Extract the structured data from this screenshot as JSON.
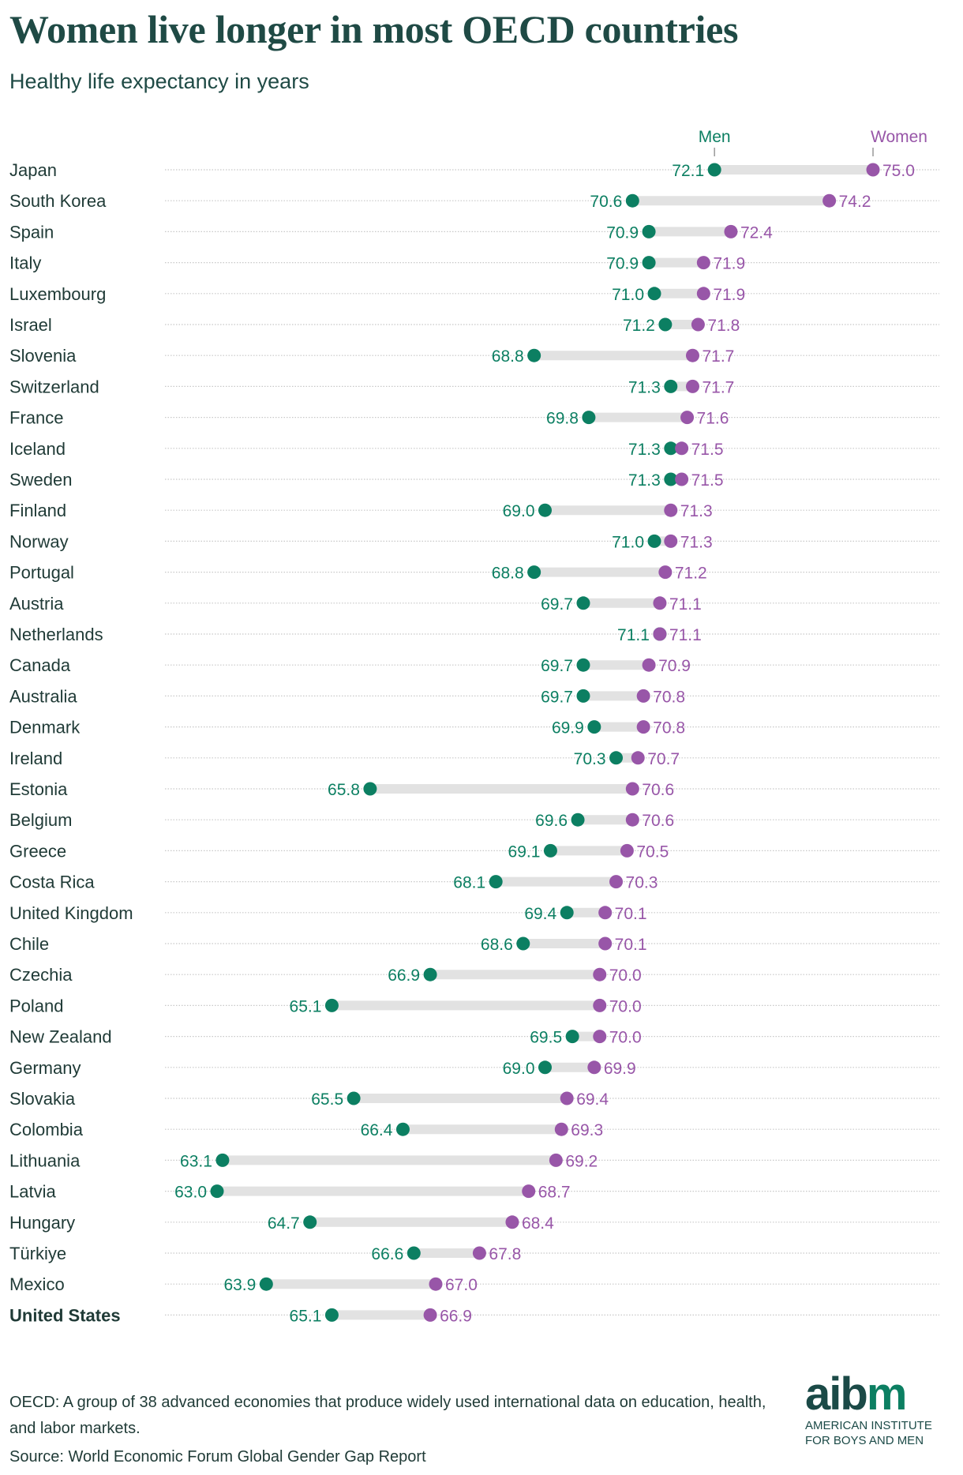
{
  "chart_data": {
    "type": "dumbbell",
    "title": "Women live longer in most OECD countries",
    "subtitle": "Healthy life expectancy in years",
    "series": [
      {
        "name": "Men",
        "color": "#0c7f62"
      },
      {
        "name": "Women",
        "color": "#9856a8"
      }
    ],
    "legend_placement": "top-right",
    "xlim": [
      63.0,
      75.0
    ],
    "rows": [
      {
        "country": "Japan",
        "men": 72.1,
        "women": 75.0
      },
      {
        "country": "South Korea",
        "men": 70.6,
        "women": 74.2
      },
      {
        "country": "Spain",
        "men": 70.9,
        "women": 72.4
      },
      {
        "country": "Italy",
        "men": 70.9,
        "women": 71.9
      },
      {
        "country": "Luxembourg",
        "men": 71.0,
        "women": 71.9
      },
      {
        "country": "Israel",
        "men": 71.2,
        "women": 71.8
      },
      {
        "country": "Slovenia",
        "men": 68.8,
        "women": 71.7
      },
      {
        "country": "Switzerland",
        "men": 71.3,
        "women": 71.7
      },
      {
        "country": "France",
        "men": 69.8,
        "women": 71.6
      },
      {
        "country": "Iceland",
        "men": 71.3,
        "women": 71.5
      },
      {
        "country": "Sweden",
        "men": 71.3,
        "women": 71.5
      },
      {
        "country": "Finland",
        "men": 69.0,
        "women": 71.3
      },
      {
        "country": "Norway",
        "men": 71.0,
        "women": 71.3
      },
      {
        "country": "Portugal",
        "men": 68.8,
        "women": 71.2
      },
      {
        "country": "Austria",
        "men": 69.7,
        "women": 71.1
      },
      {
        "country": "Netherlands",
        "men": 71.1,
        "women": 71.1
      },
      {
        "country": "Canada",
        "men": 69.7,
        "women": 70.9
      },
      {
        "country": "Australia",
        "men": 69.7,
        "women": 70.8
      },
      {
        "country": "Denmark",
        "men": 69.9,
        "women": 70.8
      },
      {
        "country": "Ireland",
        "men": 70.3,
        "women": 70.7
      },
      {
        "country": "Estonia",
        "men": 65.8,
        "women": 70.6
      },
      {
        "country": "Belgium",
        "men": 69.6,
        "women": 70.6
      },
      {
        "country": "Greece",
        "men": 69.1,
        "women": 70.5
      },
      {
        "country": "Costa Rica",
        "men": 68.1,
        "women": 70.3
      },
      {
        "country": "United Kingdom",
        "men": 69.4,
        "women": 70.1
      },
      {
        "country": "Chile",
        "men": 68.6,
        "women": 70.1
      },
      {
        "country": "Czechia",
        "men": 66.9,
        "women": 70.0
      },
      {
        "country": "Poland",
        "men": 65.1,
        "women": 70.0
      },
      {
        "country": "New Zealand",
        "men": 69.5,
        "women": 70.0
      },
      {
        "country": "Germany",
        "men": 69.0,
        "women": 69.9
      },
      {
        "country": "Slovakia",
        "men": 65.5,
        "women": 69.4
      },
      {
        "country": "Colombia",
        "men": 66.4,
        "women": 69.3
      },
      {
        "country": "Lithuania",
        "men": 63.1,
        "women": 69.2
      },
      {
        "country": "Latvia",
        "men": 63.0,
        "women": 68.7
      },
      {
        "country": "Hungary",
        "men": 64.7,
        "women": 68.4
      },
      {
        "country": "Türkiye",
        "men": 66.6,
        "women": 67.8
      },
      {
        "country": "Mexico",
        "men": 63.9,
        "women": 67.0
      },
      {
        "country": "United States",
        "men": 65.1,
        "women": 66.9,
        "highlight": true
      }
    ]
  },
  "footer": {
    "note": "OECD: A group of 38 advanced economies that produce widely used international data on education, health, and labor markets.",
    "source": "Source: World Economic Forum Global Gender Gap Report"
  },
  "logo": {
    "mark_a": "ai",
    "mark_b": "b",
    "mark_c": "m",
    "line1": "AMERICAN INSTITUTE",
    "line2": "FOR BOYS AND MEN"
  }
}
